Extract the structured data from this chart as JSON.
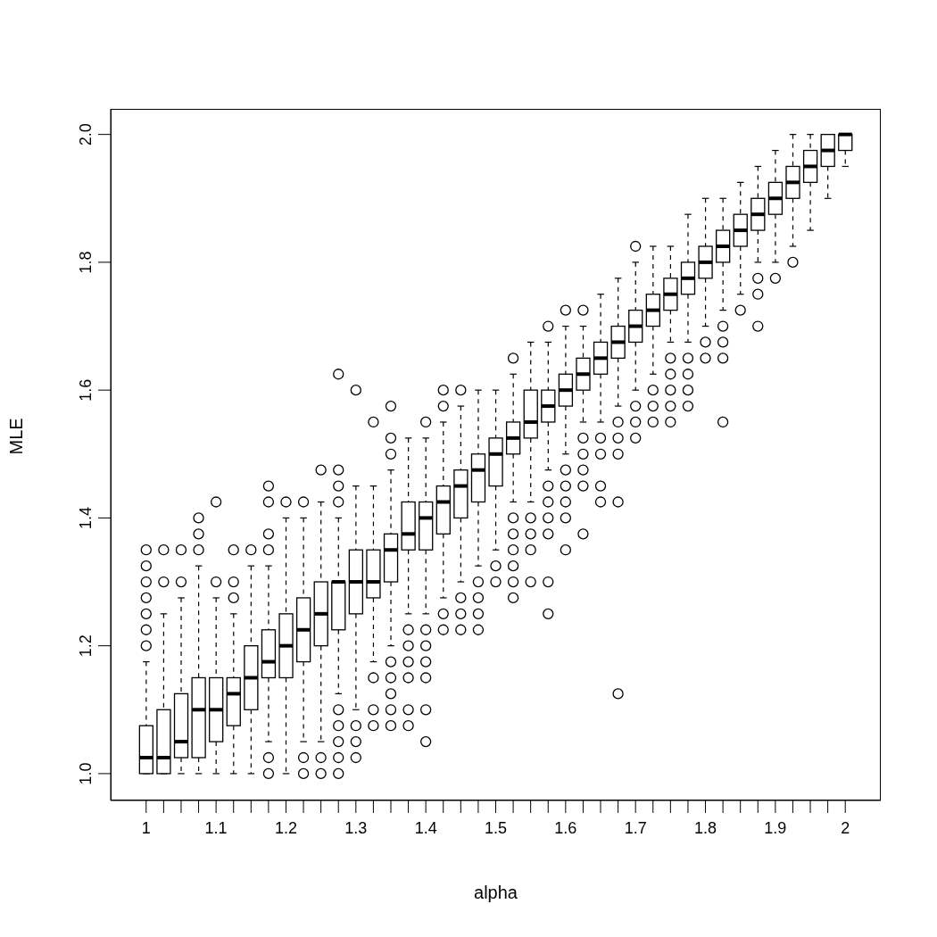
{
  "chart_data": {
    "type": "box",
    "xlabel": "alpha",
    "ylabel": "MLE",
    "categories": [
      "1",
      null,
      null,
      null,
      "1.1",
      null,
      null,
      null,
      "1.2",
      null,
      null,
      null,
      "1.3",
      null,
      null,
      null,
      "1.4",
      null,
      null,
      null,
      "1.5",
      null,
      null,
      null,
      "1.6",
      null,
      null,
      null,
      "1.7",
      null,
      null,
      null,
      "1.8",
      null,
      null,
      null,
      "1.9",
      null,
      null,
      null,
      "2"
    ],
    "ylim": [
      0.958,
      2.04
    ],
    "yticks": [
      {
        "value": 1,
        "label": "1.0"
      },
      1.2,
      1.4,
      1.6,
      1.8,
      {
        "value": 2,
        "label": "2.0"
      }
    ],
    "boxes": [
      {
        "low": 1.0,
        "q1": 1.0,
        "median": 1.025,
        "q3": 1.075,
        "high": 1.175,
        "outliers": [
          1.2,
          1.225,
          1.25,
          1.275,
          1.3,
          1.325,
          1.35
        ]
      },
      {
        "low": 1.0,
        "q1": 1.0,
        "median": 1.025,
        "q3": 1.1,
        "high": 1.25,
        "outliers": [
          1.3,
          1.35
        ]
      },
      {
        "low": 1.0,
        "q1": 1.025,
        "median": 1.05,
        "q3": 1.125,
        "high": 1.275,
        "outliers": [
          1.3,
          1.35
        ]
      },
      {
        "low": 1.0,
        "q1": 1.025,
        "median": 1.1,
        "q3": 1.15,
        "high": 1.325,
        "outliers": [
          1.35,
          1.375,
          1.4
        ]
      },
      {
        "low": 1.0,
        "q1": 1.05,
        "median": 1.1,
        "q3": 1.15,
        "high": 1.275,
        "outliers": [
          1.3,
          1.425
        ]
      },
      {
        "low": 1.0,
        "q1": 1.075,
        "median": 1.125,
        "q3": 1.15,
        "high": 1.25,
        "outliers": [
          1.275,
          1.3,
          1.35
        ]
      },
      {
        "low": 1.0,
        "q1": 1.1,
        "median": 1.15,
        "q3": 1.2,
        "high": 1.325,
        "outliers": [
          1.35
        ]
      },
      {
        "low": 1.05,
        "q1": 1.15,
        "median": 1.175,
        "q3": 1.225,
        "high": 1.325,
        "outliers": [
          1.0,
          1.025,
          1.35,
          1.375,
          1.425,
          1.45
        ]
      },
      {
        "low": 1.0,
        "q1": 1.15,
        "median": 1.2,
        "q3": 1.25,
        "high": 1.4,
        "outliers": [
          1.425
        ]
      },
      {
        "low": 1.05,
        "q1": 1.175,
        "median": 1.225,
        "q3": 1.275,
        "high": 1.4,
        "outliers": [
          1.0,
          1.025,
          1.425
        ]
      },
      {
        "low": 1.05,
        "q1": 1.2,
        "median": 1.25,
        "q3": 1.3,
        "high": 1.425,
        "outliers": [
          1.0,
          1.025,
          1.475
        ]
      },
      {
        "low": 1.125,
        "q1": 1.225,
        "median": 1.3,
        "q3": 1.3,
        "high": 1.4,
        "outliers": [
          1.0,
          1.025,
          1.05,
          1.075,
          1.1,
          1.425,
          1.45,
          1.475,
          1.625
        ]
      },
      {
        "low": 1.1,
        "q1": 1.25,
        "median": 1.3,
        "q3": 1.35,
        "high": 1.45,
        "outliers": [
          1.025,
          1.05,
          1.075,
          1.6
        ]
      },
      {
        "low": 1.175,
        "q1": 1.275,
        "median": 1.3,
        "q3": 1.35,
        "high": 1.45,
        "outliers": [
          1.075,
          1.1,
          1.15,
          1.55
        ]
      },
      {
        "low": 1.2,
        "q1": 1.3,
        "median": 1.35,
        "q3": 1.375,
        "high": 1.475,
        "outliers": [
          1.075,
          1.1,
          1.125,
          1.15,
          1.175,
          1.5,
          1.525,
          1.575
        ]
      },
      {
        "low": 1.25,
        "q1": 1.35,
        "median": 1.375,
        "q3": 1.425,
        "high": 1.525,
        "outliers": [
          1.075,
          1.1,
          1.15,
          1.175,
          1.2,
          1.225
        ]
      },
      {
        "low": 1.25,
        "q1": 1.35,
        "median": 1.4,
        "q3": 1.425,
        "high": 1.525,
        "outliers": [
          1.05,
          1.1,
          1.15,
          1.175,
          1.2,
          1.225,
          1.55
        ]
      },
      {
        "low": 1.275,
        "q1": 1.375,
        "median": 1.425,
        "q3": 1.45,
        "high": 1.55,
        "outliers": [
          1.225,
          1.25,
          1.575,
          1.6
        ]
      },
      {
        "low": 1.3,
        "q1": 1.4,
        "median": 1.45,
        "q3": 1.475,
        "high": 1.575,
        "outliers": [
          1.225,
          1.25,
          1.275,
          1.6
        ]
      },
      {
        "low": 1.325,
        "q1": 1.425,
        "median": 1.475,
        "q3": 1.5,
        "high": 1.6,
        "outliers": [
          1.225,
          1.25,
          1.275,
          1.3
        ]
      },
      {
        "low": 1.35,
        "q1": 1.45,
        "median": 1.5,
        "q3": 1.525,
        "high": 1.6,
        "outliers": [
          1.3,
          1.325
        ]
      },
      {
        "low": 1.425,
        "q1": 1.5,
        "median": 1.525,
        "q3": 1.55,
        "high": 1.625,
        "outliers": [
          1.275,
          1.3,
          1.325,
          1.35,
          1.375,
          1.4,
          1.65
        ]
      },
      {
        "low": 1.425,
        "q1": 1.525,
        "median": 1.55,
        "q3": 1.6,
        "high": 1.675,
        "outliers": [
          1.3,
          1.35,
          1.375,
          1.4
        ]
      },
      {
        "low": 1.475,
        "q1": 1.55,
        "median": 1.575,
        "q3": 1.6,
        "high": 1.675,
        "outliers": [
          1.25,
          1.3,
          1.375,
          1.4,
          1.425,
          1.45,
          1.7
        ]
      },
      {
        "low": 1.5,
        "q1": 1.575,
        "median": 1.6,
        "q3": 1.625,
        "high": 1.7,
        "outliers": [
          1.35,
          1.4,
          1.425,
          1.45,
          1.475,
          1.725
        ]
      },
      {
        "low": 1.55,
        "q1": 1.6,
        "median": 1.625,
        "q3": 1.65,
        "high": 1.7,
        "outliers": [
          1.375,
          1.45,
          1.475,
          1.5,
          1.525,
          1.725
        ]
      },
      {
        "low": 1.55,
        "q1": 1.625,
        "median": 1.65,
        "q3": 1.675,
        "high": 1.75,
        "outliers": [
          1.425,
          1.45,
          1.5,
          1.525
        ]
      },
      {
        "low": 1.575,
        "q1": 1.65,
        "median": 1.675,
        "q3": 1.7,
        "high": 1.775,
        "outliers": [
          1.125,
          1.425,
          1.5,
          1.525,
          1.55
        ]
      },
      {
        "low": 1.6,
        "q1": 1.675,
        "median": 1.7,
        "q3": 1.725,
        "high": 1.8,
        "outliers": [
          1.525,
          1.55,
          1.575,
          1.825
        ]
      },
      {
        "low": 1.625,
        "q1": 1.7,
        "median": 1.725,
        "q3": 1.75,
        "high": 1.825,
        "outliers": [
          1.55,
          1.575,
          1.6
        ]
      },
      {
        "low": 1.675,
        "q1": 1.725,
        "median": 1.75,
        "q3": 1.775,
        "high": 1.825,
        "outliers": [
          1.55,
          1.575,
          1.6,
          1.625,
          1.65
        ]
      },
      {
        "low": 1.675,
        "q1": 1.75,
        "median": 1.775,
        "q3": 1.8,
        "high": 1.875,
        "outliers": [
          1.575,
          1.6,
          1.625,
          1.65
        ]
      },
      {
        "low": 1.7,
        "q1": 1.775,
        "median": 1.8,
        "q3": 1.825,
        "high": 1.9,
        "outliers": [
          1.65,
          1.675
        ]
      },
      {
        "low": 1.725,
        "q1": 1.8,
        "median": 1.825,
        "q3": 1.85,
        "high": 1.9,
        "outliers": [
          1.55,
          1.65,
          1.675,
          1.7
        ]
      },
      {
        "low": 1.75,
        "q1": 1.825,
        "median": 1.85,
        "q3": 1.875,
        "high": 1.925,
        "outliers": [
          1.725
        ]
      },
      {
        "low": 1.8,
        "q1": 1.85,
        "median": 1.875,
        "q3": 1.9,
        "high": 1.95,
        "outliers": [
          1.7,
          1.75,
          1.775
        ]
      },
      {
        "low": 1.8,
        "q1": 1.875,
        "median": 1.9,
        "q3": 1.925,
        "high": 1.975,
        "outliers": [
          1.775
        ]
      },
      {
        "low": 1.825,
        "q1": 1.9,
        "median": 1.925,
        "q3": 1.95,
        "high": 2.0,
        "outliers": [
          1.8
        ]
      },
      {
        "low": 1.85,
        "q1": 1.925,
        "median": 1.95,
        "q3": 1.975,
        "high": 2.0
      },
      {
        "low": 1.9,
        "q1": 1.95,
        "median": 1.975,
        "q3": 2.0,
        "high": 2.0
      },
      {
        "low": 1.95,
        "q1": 1.975,
        "median": 2.0,
        "q3": 2.0,
        "high": 2.0
      }
    ]
  }
}
